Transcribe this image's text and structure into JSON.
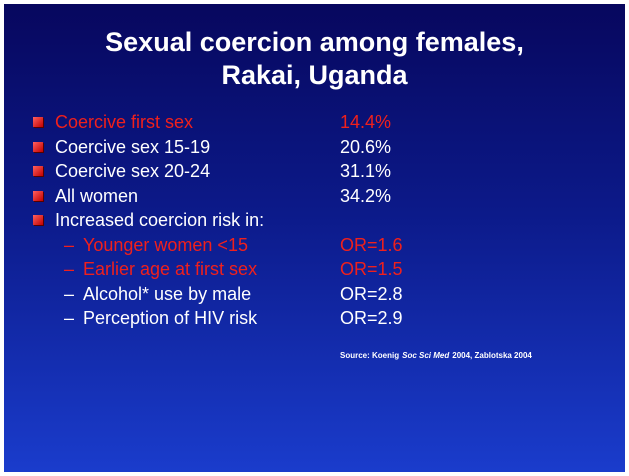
{
  "title": [
    "Sexual coercion among females,",
    "Rakai, Uganda"
  ],
  "bullets": [
    {
      "label": "Coercive first sex",
      "value": "14.4%",
      "highlight": true
    },
    {
      "label": "Coercive sex 15-19",
      "value": "20.6%",
      "highlight": false
    },
    {
      "label": "Coercive sex 20-24",
      "value": "31.1%",
      "highlight": false
    },
    {
      "label": "All women",
      "value": "34.2%",
      "highlight": false
    }
  ],
  "sub_heading": "Increased coercion risk in:",
  "sub_bullets": [
    {
      "label": "Younger women <15",
      "value": "OR=1.6",
      "highlight": true
    },
    {
      "label": "Earlier age at first sex",
      "value": "OR=1.5",
      "highlight": true
    },
    {
      "label": "Alcohol* use by male",
      "value": "OR=2.8",
      "highlight": false
    },
    {
      "label": "Perception of HIV risk",
      "value": "OR=2.9",
      "highlight": false
    }
  ],
  "source": [
    "Source: Koenig",
    "Soc Sci Med",
    "2004, Zablotska 2004"
  ]
}
